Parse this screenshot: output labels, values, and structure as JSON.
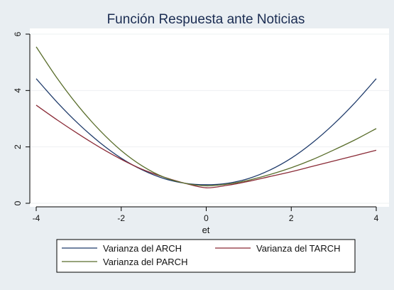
{
  "chart_data": {
    "type": "line",
    "title": "Función Respuesta ante Noticias",
    "xlabel": "et",
    "ylabel": "",
    "xlim": [
      -4,
      4
    ],
    "ylim": [
      0,
      6
    ],
    "xticks": [
      -4,
      -2,
      0,
      2,
      4
    ],
    "yticks": [
      0,
      2,
      4,
      6
    ],
    "grid": true,
    "legend_position": "bottom",
    "x": [
      -4,
      -3.5,
      -3,
      -2.5,
      -2,
      -1.5,
      -1,
      -0.5,
      0,
      0.5,
      1,
      1.5,
      2,
      2.5,
      3,
      3.5,
      4
    ],
    "series": [
      {
        "name": "Varianza del ARCH",
        "color": "#1f3b6b",
        "values": [
          4.42,
          3.57,
          2.81,
          2.15,
          1.6,
          1.18,
          0.88,
          0.71,
          0.66,
          0.71,
          0.88,
          1.18,
          1.6,
          2.15,
          2.81,
          3.57,
          4.42
        ]
      },
      {
        "name": "Varianza del TARCH",
        "color": "#8a2a36",
        "values": [
          3.48,
          2.95,
          2.45,
          1.98,
          1.56,
          1.2,
          0.93,
          0.71,
          0.55,
          0.64,
          0.78,
          0.95,
          1.12,
          1.31,
          1.5,
          1.69,
          1.88
        ]
      },
      {
        "name": "Varianza del PARCH",
        "color": "#5a6e2c",
        "values": [
          5.55,
          4.42,
          3.43,
          2.58,
          1.87,
          1.32,
          0.93,
          0.71,
          0.62,
          0.68,
          0.82,
          1.02,
          1.26,
          1.55,
          1.89,
          2.25,
          2.65
        ]
      }
    ]
  }
}
